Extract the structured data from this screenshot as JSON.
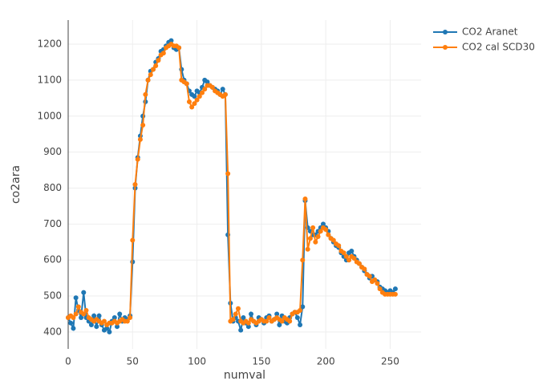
{
  "chart_data": {
    "type": "line",
    "xlabel": "numval",
    "ylabel": "co2ara",
    "x": [
      0,
      2,
      4,
      6,
      8,
      10,
      12,
      14,
      16,
      18,
      20,
      22,
      24,
      26,
      28,
      30,
      32,
      34,
      36,
      38,
      40,
      42,
      44,
      46,
      48,
      50,
      52,
      54,
      56,
      58,
      60,
      62,
      64,
      66,
      68,
      70,
      72,
      74,
      76,
      78,
      80,
      82,
      84,
      86,
      88,
      90,
      92,
      94,
      96,
      98,
      100,
      102,
      104,
      106,
      108,
      110,
      112,
      114,
      116,
      118,
      120,
      122,
      124,
      126,
      128,
      130,
      132,
      134,
      136,
      138,
      140,
      142,
      144,
      146,
      148,
      150,
      152,
      154,
      156,
      158,
      160,
      162,
      164,
      166,
      168,
      170,
      172,
      174,
      176,
      178,
      180,
      182,
      184,
      186,
      188,
      190,
      192,
      194,
      196,
      198,
      200,
      202,
      204,
      206,
      208,
      210,
      212,
      214,
      216,
      218,
      220,
      222,
      224,
      226,
      228,
      230,
      232,
      234,
      236,
      238,
      240,
      242,
      244,
      246,
      248,
      250,
      252,
      254
    ],
    "series": [
      {
        "name": "CO2 Aranet",
        "color": "#1f77b4",
        "values": [
          440,
          425,
          410,
          495,
          460,
          440,
          510,
          440,
          430,
          420,
          445,
          415,
          445,
          420,
          405,
          410,
          400,
          430,
          440,
          415,
          450,
          430,
          440,
          435,
          445,
          595,
          800,
          885,
          945,
          1000,
          1040,
          1100,
          1125,
          1130,
          1150,
          1160,
          1180,
          1185,
          1195,
          1205,
          1210,
          1190,
          1185,
          1190,
          1130,
          1100,
          1090,
          1070,
          1060,
          1055,
          1070,
          1065,
          1080,
          1100,
          1095,
          1085,
          1080,
          1075,
          1070,
          1060,
          1075,
          1060,
          670,
          480,
          430,
          440,
          430,
          405,
          440,
          425,
          415,
          450,
          430,
          420,
          440,
          435,
          425,
          440,
          445,
          430,
          435,
          450,
          420,
          445,
          430,
          425,
          440,
          450,
          455,
          440,
          420,
          470,
          765,
          690,
          680,
          670,
          670,
          680,
          690,
          700,
          690,
          680,
          660,
          650,
          640,
          635,
          620,
          610,
          600,
          620,
          625,
          610,
          600,
          590,
          580,
          570,
          560,
          550,
          555,
          545,
          540,
          525,
          520,
          515,
          510,
          515,
          510,
          520
        ]
      },
      {
        "name": "CO2 cal SCD30",
        "color": "#ff7f0e",
        "values": [
          440,
          445,
          440,
          450,
          470,
          455,
          450,
          460,
          440,
          435,
          430,
          435,
          430,
          425,
          430,
          420,
          425,
          425,
          430,
          425,
          430,
          435,
          430,
          430,
          440,
          655,
          810,
          880,
          935,
          975,
          1060,
          1100,
          1115,
          1130,
          1140,
          1155,
          1170,
          1175,
          1190,
          1195,
          1200,
          1195,
          1195,
          1190,
          1100,
          1095,
          1090,
          1040,
          1025,
          1035,
          1045,
          1055,
          1065,
          1075,
          1085,
          1085,
          1080,
          1070,
          1065,
          1060,
          1055,
          1060,
          840,
          430,
          435,
          450,
          465,
          430,
          425,
          430,
          425,
          435,
          430,
          425,
          430,
          435,
          430,
          430,
          440,
          430,
          435,
          440,
          435,
          430,
          440,
          435,
          430,
          450,
          455,
          455,
          460,
          600,
          770,
          630,
          660,
          690,
          650,
          665,
          680,
          690,
          685,
          670,
          660,
          655,
          645,
          640,
          625,
          620,
          610,
          600,
          610,
          605,
          595,
          590,
          580,
          575,
          560,
          555,
          540,
          545,
          535,
          520,
          510,
          505,
          505,
          505,
          505,
          505
        ]
      }
    ],
    "xlim": [
      0,
      274
    ],
    "ylim": [
      353,
      1267
    ],
    "xticks": [
      0,
      50,
      100,
      150,
      200,
      250
    ],
    "yticks": [
      400,
      500,
      600,
      700,
      800,
      900,
      1000,
      1100,
      1200
    ],
    "grid": true,
    "legend": "top-right"
  }
}
